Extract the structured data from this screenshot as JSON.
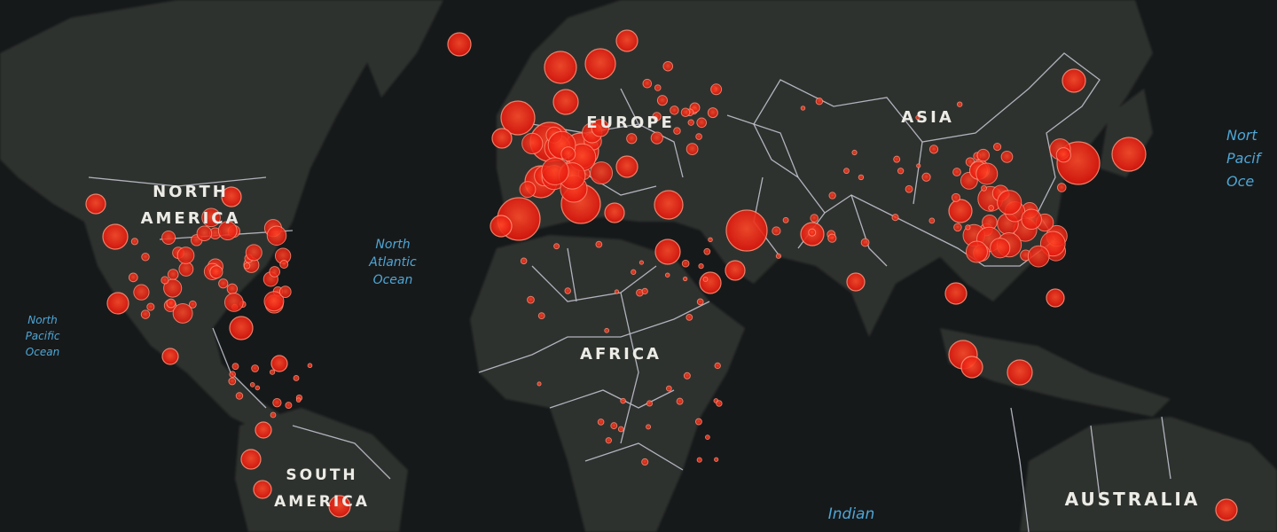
{
  "continents": [
    {
      "lines": [
        "NORTH",
        "AMERICA"
      ]
    },
    {
      "lines": [
        "EUROPE"
      ]
    },
    {
      "lines": [
        "ASIA"
      ]
    },
    {
      "lines": [
        "AFRICA"
      ]
    },
    {
      "lines": [
        "SOUTH",
        "AMERICA"
      ]
    },
    {
      "lines": [
        "AUSTRALIA"
      ]
    }
  ],
  "oceans": [
    {
      "lines": [
        "North",
        "Atlantic",
        "Ocean"
      ]
    },
    {
      "lines": [
        "North",
        "Pacific",
        "Ocean"
      ]
    },
    {
      "lines": [
        "Nort",
        "Pacif",
        "Oce"
      ]
    },
    {
      "lines": [
        "Indian"
      ]
    }
  ]
}
